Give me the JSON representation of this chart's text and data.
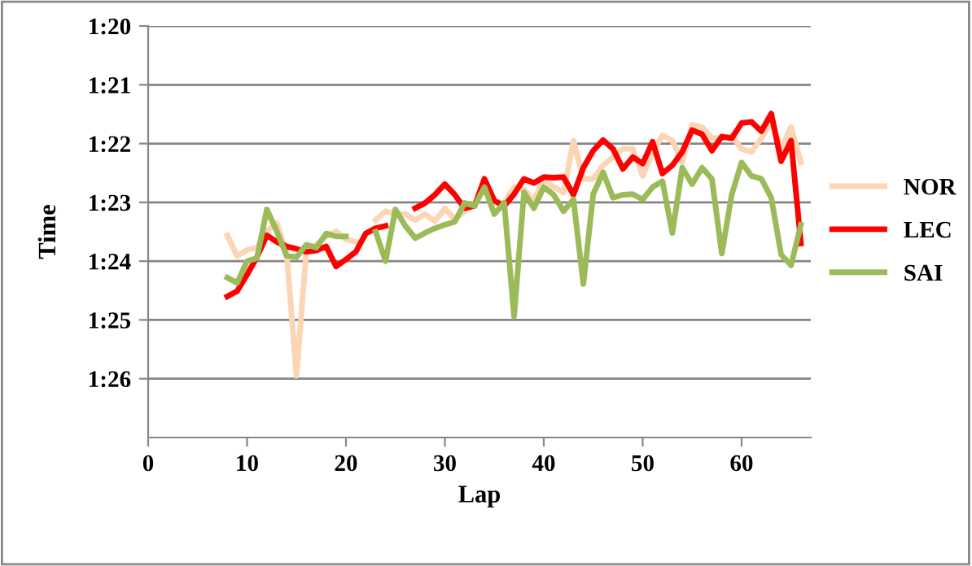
{
  "chart_data": {
    "type": "line",
    "xlabel": "Lap",
    "ylabel": "Time",
    "x": [
      8,
      9,
      10,
      11,
      12,
      13,
      14,
      15,
      16,
      17,
      18,
      19,
      20,
      21,
      22,
      23,
      24,
      25,
      26,
      27,
      28,
      29,
      30,
      31,
      32,
      33,
      34,
      35,
      36,
      37,
      38,
      39,
      40,
      41,
      42,
      43,
      44,
      45,
      46,
      47,
      48,
      49,
      50,
      51,
      52,
      53,
      54,
      55,
      56,
      57,
      58,
      59,
      60,
      61,
      62,
      63,
      64,
      65,
      66
    ],
    "series": [
      {
        "name": "NOR",
        "color": "#fcd5b5",
        "values": [
          83.56,
          83.91,
          83.81,
          83.77,
          83.49,
          83.35,
          83.86,
          85.95,
          83.81,
          83.72,
          83.58,
          83.49,
          83.63,
          83.67,
          null,
          83.3,
          83.15,
          83.2,
          83.2,
          83.3,
          83.2,
          83.32,
          83.1,
          83.29,
          83.15,
          83.01,
          82.78,
          83.01,
          83.01,
          82.74,
          82.78,
          82.97,
          82.6,
          82.74,
          82.83,
          81.95,
          82.6,
          82.6,
          82.37,
          82.23,
          82.09,
          82.09,
          82.55,
          82.14,
          81.86,
          81.95,
          82.32,
          81.68,
          81.72,
          81.91,
          81.91,
          81.86,
          82.09,
          82.14,
          81.91,
          81.63,
          82.09,
          81.72,
          82.32
        ]
      },
      {
        "name": "LEC",
        "color": "#ff0000",
        "values": [
          84.6,
          84.51,
          84.23,
          83.93,
          83.56,
          83.67,
          83.75,
          83.79,
          83.84,
          83.82,
          83.75,
          84.09,
          83.97,
          83.84,
          83.53,
          83.44,
          83.4,
          null,
          null,
          83.1,
          83.01,
          82.87,
          82.69,
          82.87,
          83.1,
          83.06,
          82.6,
          82.97,
          83.06,
          82.86,
          82.6,
          82.67,
          82.57,
          82.58,
          82.57,
          82.87,
          82.41,
          82.12,
          81.94,
          82.09,
          82.43,
          82.23,
          82.34,
          81.97,
          82.51,
          82.37,
          82.14,
          81.77,
          81.84,
          82.12,
          81.88,
          81.91,
          81.65,
          81.63,
          81.79,
          81.49,
          82.3,
          81.95,
          83.7
        ]
      },
      {
        "name": "SAI",
        "color": "#9bbb59",
        "values": [
          84.28,
          84.37,
          84.0,
          83.95,
          83.12,
          83.49,
          83.91,
          83.93,
          83.72,
          83.77,
          83.53,
          83.58,
          83.58,
          null,
          null,
          83.5,
          84.0,
          83.12,
          83.4,
          83.61,
          83.52,
          83.44,
          83.38,
          83.33,
          83.01,
          83.06,
          82.74,
          83.2,
          83.01,
          84.94,
          82.83,
          83.1,
          82.74,
          82.87,
          83.15,
          82.95,
          84.39,
          82.86,
          82.49,
          82.92,
          82.87,
          82.86,
          82.95,
          82.74,
          82.64,
          83.52,
          82.41,
          82.69,
          82.41,
          82.6,
          83.87,
          82.87,
          82.32,
          82.55,
          82.6,
          82.92,
          83.89,
          84.07,
          83.38
        ]
      }
    ],
    "xlim": [
      0,
      67
    ],
    "xticks": [
      0,
      10,
      20,
      30,
      40,
      50,
      60
    ],
    "ylim": [
      87,
      80
    ],
    "yticks": [
      {
        "value": 80,
        "label": "1:20"
      },
      {
        "value": 81,
        "label": "1:21"
      },
      {
        "value": 82,
        "label": "1:22"
      },
      {
        "value": 83,
        "label": "1:23"
      },
      {
        "value": 84,
        "label": "1:24"
      },
      {
        "value": 85,
        "label": "1:25"
      },
      {
        "value": 86,
        "label": "1:26"
      }
    ],
    "grid": "y",
    "legend": "right",
    "marker": "none",
    "line_style": "solid"
  }
}
